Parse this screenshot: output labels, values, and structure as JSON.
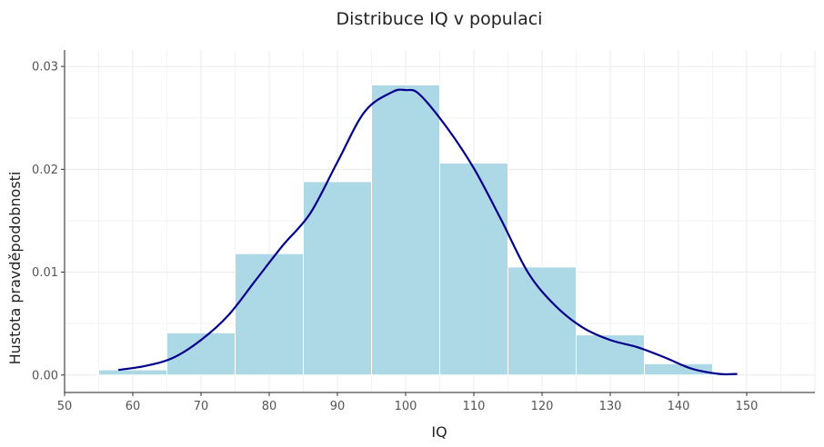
{
  "chart_data": {
    "type": "bar",
    "title": "Distribuce IQ v populaci",
    "xlabel": "IQ",
    "ylabel": "Hustota pravděpodobnosti",
    "xlim": [
      50,
      160
    ],
    "ylim": [
      -0.0017,
      0.0316
    ],
    "x_ticks": [
      50,
      60,
      70,
      80,
      90,
      100,
      110,
      120,
      130,
      140,
      150
    ],
    "y_ticks": [
      0.0,
      0.01,
      0.02,
      0.03
    ],
    "y_tick_labels": [
      "0.00",
      "0.01",
      "0.02",
      "0.03"
    ],
    "grid": true,
    "bin_edges": [
      55,
      65,
      75,
      85,
      95,
      105,
      115,
      125,
      135,
      145
    ],
    "values": [
      0.0005,
      0.0041,
      0.0118,
      0.0188,
      0.0282,
      0.0206,
      0.0105,
      0.0039,
      0.0011
    ],
    "bar_color": "#add8e6",
    "bar_edge_color": "#ffffff",
    "density_curve": {
      "color": "#00008b",
      "x": [
        58,
        62,
        66,
        70,
        74,
        78,
        82,
        86,
        90,
        94,
        98,
        100,
        102,
        106,
        110,
        114,
        118,
        122,
        126,
        130,
        134,
        138,
        142,
        146,
        148.5
      ],
      "y": [
        0.0005,
        0.0009,
        0.0017,
        0.0034,
        0.0058,
        0.0092,
        0.0126,
        0.0157,
        0.0207,
        0.0256,
        0.0275,
        0.0277,
        0.0273,
        0.0241,
        0.0201,
        0.0151,
        0.0099,
        0.0067,
        0.0046,
        0.0034,
        0.0027,
        0.0017,
        0.0006,
        0.0001,
        0.0001
      ]
    }
  }
}
